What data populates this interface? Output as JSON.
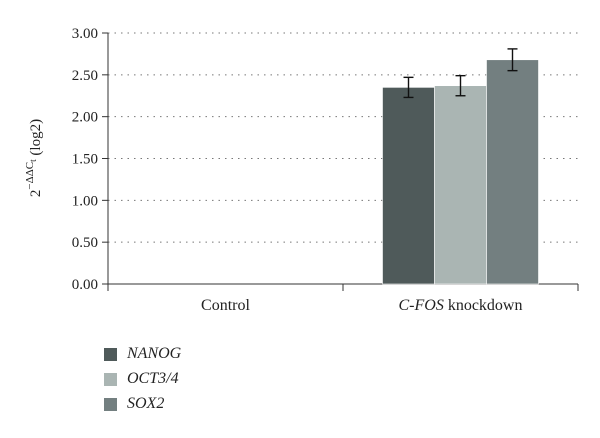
{
  "chart_data": {
    "type": "bar",
    "categories": [
      "Control",
      "C-FOS knockdown"
    ],
    "category_prefix_italic": [
      "",
      "C-FOS"
    ],
    "category_suffix": [
      "Control",
      " knockdown"
    ],
    "series": [
      {
        "name": "NANOG",
        "values": [
          0,
          2.35
        ],
        "errors": [
          0,
          0.12
        ],
        "color": "#4f5a5a"
      },
      {
        "name": "OCT3/4",
        "values": [
          0,
          2.37
        ],
        "errors": [
          0,
          0.12
        ],
        "color": "#aab5b3"
      },
      {
        "name": "SOX2",
        "values": [
          0,
          2.68
        ],
        "errors": [
          0,
          0.13
        ],
        "color": "#737f80"
      }
    ],
    "ylabel": "2^{-ΔΔC_t} (log2)",
    "ylabel_base": "2",
    "ylabel_exp": "−ΔΔC",
    "ylabel_sub": "t",
    "ylabel_tail": " (log2)",
    "ylim": [
      0,
      3
    ],
    "yticks": [
      "0.00",
      "0.50",
      "1.00",
      "1.50",
      "2.00",
      "2.50",
      "3.00"
    ],
    "grid": "dotted horizontal",
    "legend_position": "bottom-left"
  }
}
